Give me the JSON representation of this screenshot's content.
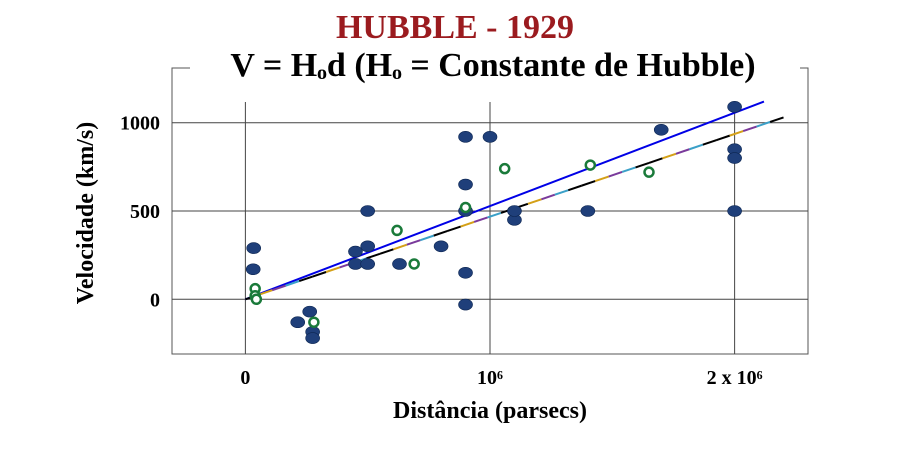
{
  "chart_data": {
    "type": "scatter",
    "title": "HUBBLE - 1929",
    "title_color": "#9b1b1f",
    "subtitle": "V = Hₒd  (Hₒ = Constante de Hubble)",
    "xlabel": "Distância (parsecs)",
    "ylabel": "Velocidade (km/s)",
    "xlim": [
      -300000,
      2300000
    ],
    "ylim": [
      -310,
      1310
    ],
    "grid": true,
    "x_ticks": [
      {
        "value": 0,
        "label": "0"
      },
      {
        "value": 1000000,
        "label": "10⁶"
      },
      {
        "value": 2000000,
        "label": "2 x 10⁶"
      }
    ],
    "y_ticks": [
      {
        "value": 0,
        "label": "0"
      },
      {
        "value": 500,
        "label": "500"
      },
      {
        "value": 1000,
        "label": "1000"
      }
    ],
    "series": [
      {
        "marker": "filled-ellipse",
        "color": "#1f3f7a",
        "points": [
          [
            32000,
            170
          ],
          [
            34000,
            290
          ],
          [
            214000,
            -130
          ],
          [
            263000,
            -70
          ],
          [
            275000,
            -185
          ],
          [
            275000,
            -220
          ],
          [
            450000,
            200
          ],
          [
            450000,
            270
          ],
          [
            500000,
            200
          ],
          [
            500000,
            300
          ],
          [
            500000,
            500
          ],
          [
            630000,
            200
          ],
          [
            800000,
            300
          ],
          [
            900000,
            -30
          ],
          [
            900000,
            650
          ],
          [
            900000,
            150
          ],
          [
            900000,
            500
          ],
          [
            900000,
            920
          ],
          [
            1000000,
            920
          ],
          [
            1100000,
            450
          ],
          [
            1100000,
            500
          ],
          [
            1400000,
            500
          ],
          [
            1700000,
            960
          ],
          [
            2000000,
            500
          ],
          [
            2000000,
            850
          ],
          [
            2000000,
            800
          ],
          [
            2000000,
            1090
          ]
        ]
      },
      {
        "marker": "open-circle",
        "color": "#1a7a3a",
        "points": [
          [
            40000,
            60
          ],
          [
            280000,
            -130
          ],
          [
            620000,
            390
          ],
          [
            690000,
            200
          ],
          [
            900000,
            520
          ],
          [
            1060000,
            740
          ],
          [
            1410000,
            760
          ],
          [
            1650000,
            720
          ],
          [
            40000,
            20
          ],
          [
            45000,
            0
          ]
        ]
      }
    ],
    "lines": [
      {
        "color": "#0000e6",
        "from": [
          0,
          0
        ],
        "to": [
          2120000,
          1120
        ]
      },
      {
        "color": "#000000",
        "style": "multicolor-dashed",
        "from": [
          0,
          0
        ],
        "to": [
          2200000,
          1030
        ]
      }
    ]
  }
}
